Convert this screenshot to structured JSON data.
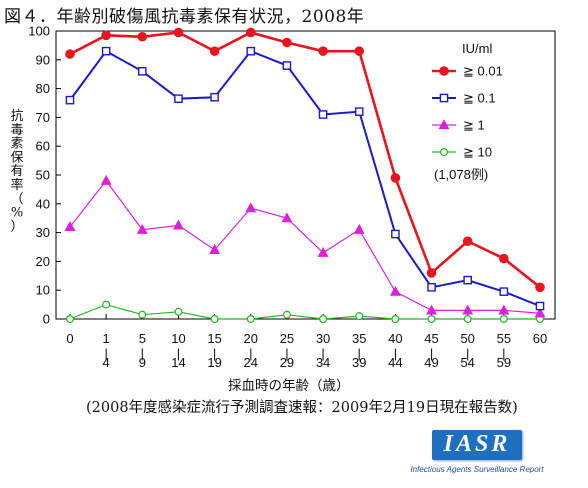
{
  "title": "図４．年齢別破傷風抗毒素保有状況，2008年",
  "source_note": "(2008年度感染症流行予測調査速報：2009年2月19日現在報告数)",
  "logo": {
    "text": "IASR",
    "subtitle": "Infectious Agents Surveillance Report"
  },
  "chart_data": {
    "type": "line",
    "xlabel": "採血時の年齢（歳）",
    "ylabel": "抗毒素保有率（%）",
    "ylim": [
      0,
      100
    ],
    "yticks": [
      0,
      10,
      20,
      30,
      40,
      50,
      60,
      70,
      80,
      90,
      100
    ],
    "categories": [
      "0",
      "1",
      "5",
      "10",
      "15",
      "20",
      "25",
      "30",
      "35",
      "40",
      "45",
      "50",
      "55",
      "60"
    ],
    "category_ranges": [
      "",
      "4",
      "9",
      "14",
      "19",
      "24",
      "29",
      "34",
      "39",
      "44",
      "49",
      "54",
      "59",
      ""
    ],
    "legend_title": "IU/ml",
    "legend_position": "top-right",
    "sample_size": "(1,078例)",
    "grid": false,
    "series": [
      {
        "name": "≧ 0.01",
        "color": "#e8141e",
        "marker": "filled-circle",
        "values": [
          92,
          98.5,
          98,
          99.5,
          93,
          99.5,
          96,
          93,
          93,
          49,
          16,
          27,
          21,
          11
        ]
      },
      {
        "name": "≧ 0.1",
        "color": "#1a1acc",
        "marker": "open-square",
        "values": [
          76,
          93,
          86,
          76.5,
          77,
          93,
          88,
          71,
          72,
          29.5,
          11,
          13.5,
          9.5,
          4.5
        ]
      },
      {
        "name": "≧ 1",
        "color": "#e020d8",
        "marker": "filled-triangle",
        "values": [
          32,
          48,
          31,
          32.5,
          24,
          38.5,
          35,
          23,
          31,
          9.5,
          3,
          3,
          3,
          2
        ]
      },
      {
        "name": "≧ 10",
        "color": "#22b822",
        "marker": "open-circle",
        "values": [
          0,
          5,
          1.5,
          2.5,
          0,
          0,
          1.5,
          0,
          1,
          0,
          0,
          0,
          0,
          0
        ]
      }
    ]
  }
}
